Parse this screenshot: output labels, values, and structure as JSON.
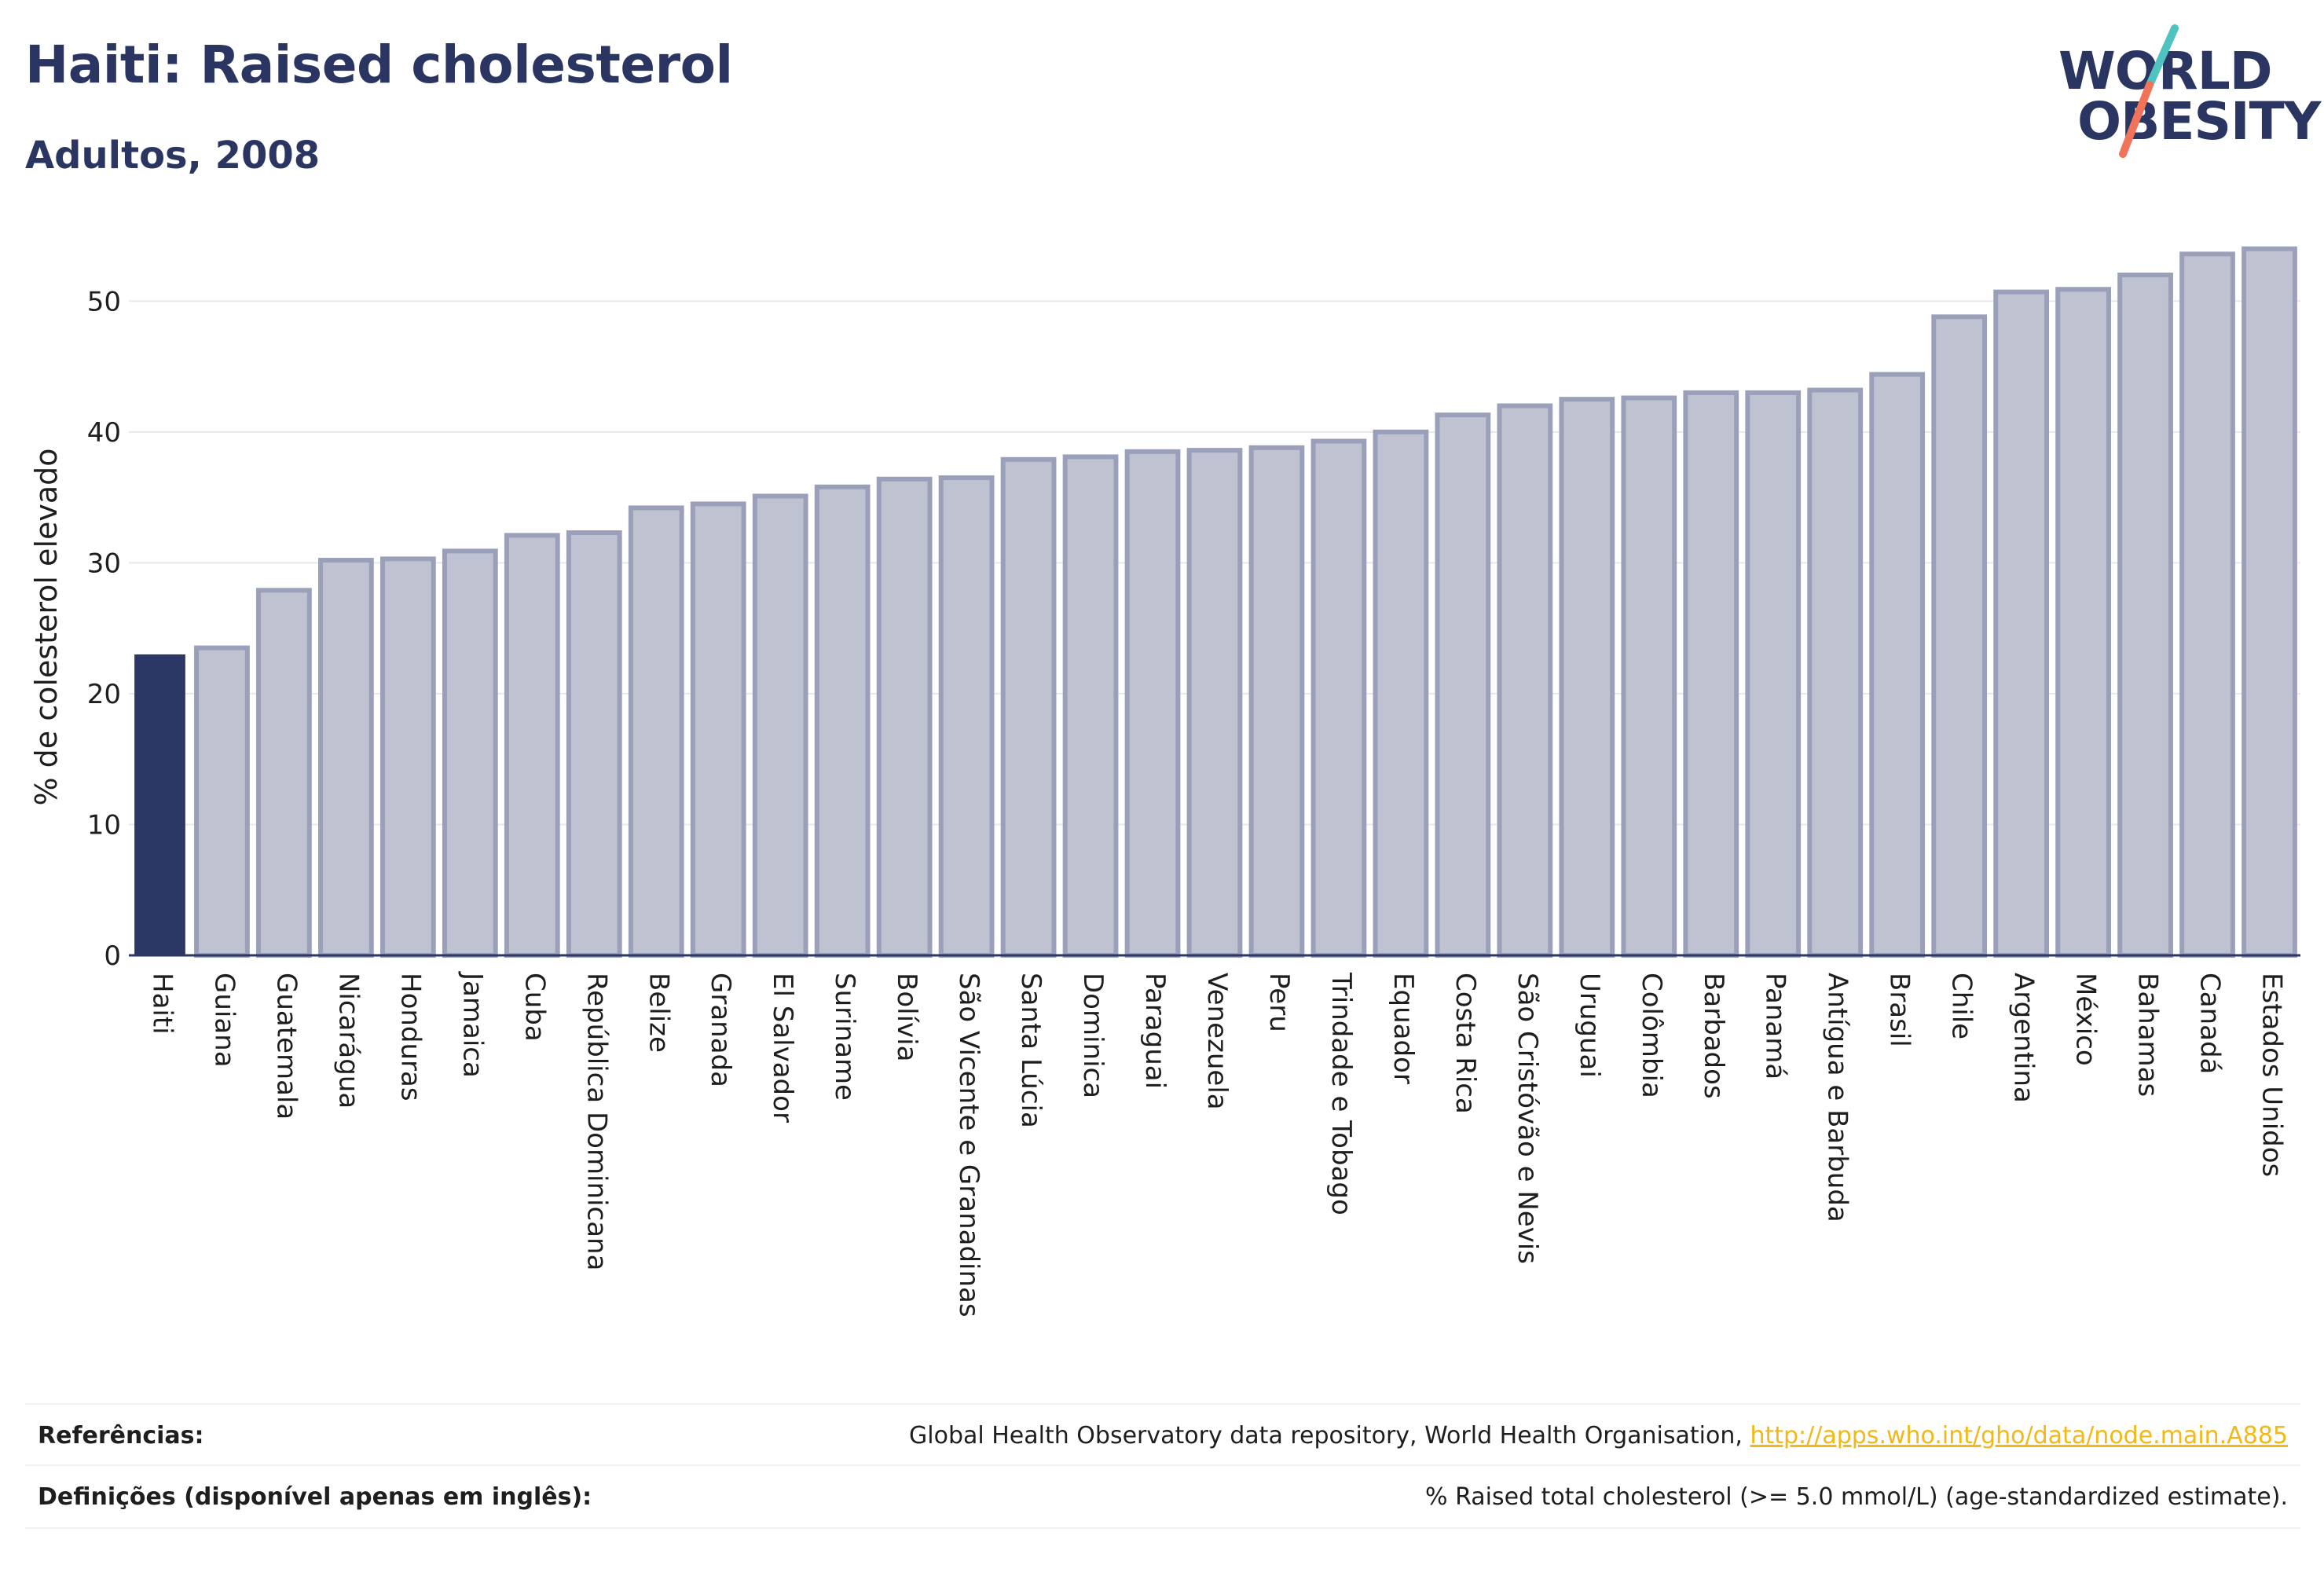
{
  "header": {
    "title": "Haiti: Raised cholesterol",
    "subtitle": "Adultos, 2008"
  },
  "logo": {
    "line1": "WORLD",
    "line2": "OBESITY",
    "slash_colors": [
      "#4fc3c0",
      "#f0735a"
    ]
  },
  "colors": {
    "highlight_bar": "#2b3764",
    "other_bar_fill": "#bfc3d1",
    "other_bar_stroke": "#9aa0b9",
    "axis": "#2b3764",
    "grid": "#e6e8ef"
  },
  "chart_data": {
    "type": "bar",
    "ylabel": "% de colesterol elevado",
    "xlabel": "",
    "ylim": [
      0,
      55
    ],
    "yticks": [
      0,
      10,
      20,
      30,
      40,
      50
    ],
    "grid": true,
    "highlight": "Haiti",
    "categories": [
      "Haiti",
      "Guiana",
      "Guatemala",
      "Nicarágua",
      "Honduras",
      "Jamaica",
      "Cuba",
      "República Dominicana",
      "Belize",
      "Granada",
      "El Salvador",
      "Suriname",
      "Bolívia",
      "São Vicente e Granadinas",
      "Santa Lúcia",
      "Dominica",
      "Paraguai",
      "Venezuela",
      "Peru",
      "Trindade e Tobago",
      "Equador",
      "Costa Rica",
      "São Cristóvão e Nevis",
      "Uruguai",
      "Colômbia",
      "Barbados",
      "Panamá",
      "Antígua e Barbuda",
      "Brasil",
      "Chile",
      "Argentina",
      "México",
      "Bahamas",
      "Canadá",
      "Estados Unidos"
    ],
    "values": [
      23.0,
      23.5,
      27.9,
      30.2,
      30.3,
      30.9,
      32.1,
      32.3,
      34.2,
      34.5,
      35.1,
      35.8,
      36.4,
      36.5,
      37.9,
      38.1,
      38.5,
      38.6,
      38.8,
      39.3,
      40.0,
      41.3,
      42.0,
      42.5,
      42.6,
      43.0,
      43.0,
      43.2,
      44.4,
      48.8,
      50.7,
      50.9,
      52.0,
      53.6,
      54.0
    ]
  },
  "footer": {
    "references_label": "Referências:",
    "references_text": "Global Health Observatory data repository, World Health Organisation, ",
    "references_link": "http://apps.who.int/gho/data/node.main.A885",
    "definitions_label": "Definições (disponível apenas em inglês):",
    "definitions_text": "% Raised total cholesterol (>= 5.0 mmol/L) (age-standardized estimate)."
  }
}
